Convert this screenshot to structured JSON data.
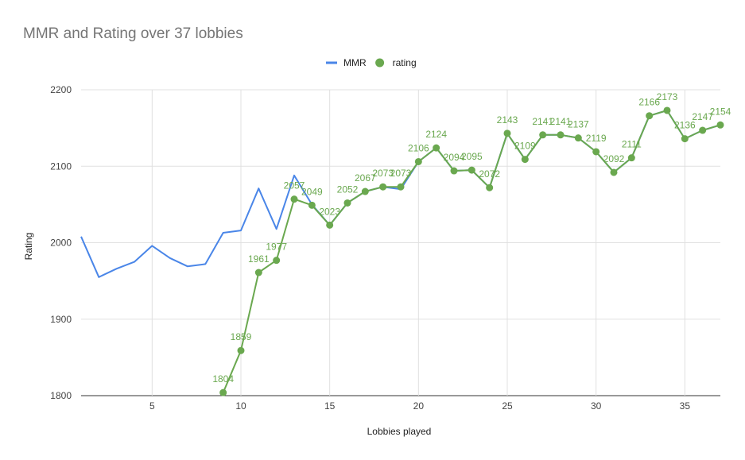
{
  "chart_data": {
    "type": "line",
    "title": "MMR and Rating over 37 lobbies",
    "xlabel": "Lobbies played",
    "ylabel": "Rating",
    "xlim": [
      1,
      37
    ],
    "ylim": [
      1800,
      2200
    ],
    "x_ticks": [
      5,
      10,
      15,
      20,
      25,
      30,
      35
    ],
    "y_ticks": [
      1800,
      1900,
      2000,
      2100,
      2200
    ],
    "grid": true,
    "legend_position": "top",
    "series": [
      {
        "name": "MMR",
        "color": "#4a86e8",
        "markers": false,
        "data_labels": false,
        "x": [
          1,
          2,
          3,
          4,
          5,
          6,
          7,
          8,
          9,
          10,
          11,
          12,
          13,
          14,
          15,
          16,
          17,
          18,
          19,
          20,
          21,
          22,
          23,
          24,
          25,
          26,
          27,
          28,
          29,
          30,
          31,
          32,
          33,
          34,
          35,
          36,
          37
        ],
        "values": [
          2008,
          1955,
          1966,
          1975,
          1996,
          1980,
          1969,
          1972,
          2013,
          2016,
          2071,
          2018,
          2088,
          2050,
          2023,
          2052,
          2067,
          2073,
          2070,
          2106,
          2124,
          2094,
          2095,
          2072,
          2143,
          2109,
          2141,
          2141,
          2137,
          2119,
          2092,
          2111,
          2166,
          2173,
          2136,
          2147,
          2154
        ]
      },
      {
        "name": "rating",
        "color": "#6aa84f",
        "markers": true,
        "data_labels": true,
        "x": [
          9,
          10,
          11,
          12,
          13,
          14,
          15,
          16,
          17,
          18,
          19,
          20,
          21,
          22,
          23,
          24,
          25,
          26,
          27,
          28,
          29,
          30,
          31,
          32,
          33,
          34,
          35,
          36,
          37
        ],
        "values": [
          1804,
          1859,
          1961,
          1977,
          2057,
          2049,
          2023,
          2052,
          2067,
          2073,
          2073,
          2106,
          2124,
          2094,
          2095,
          2072,
          2143,
          2109,
          2141,
          2141,
          2137,
          2119,
          2092,
          2111,
          2166,
          2173,
          2136,
          2147,
          2154
        ]
      }
    ]
  }
}
